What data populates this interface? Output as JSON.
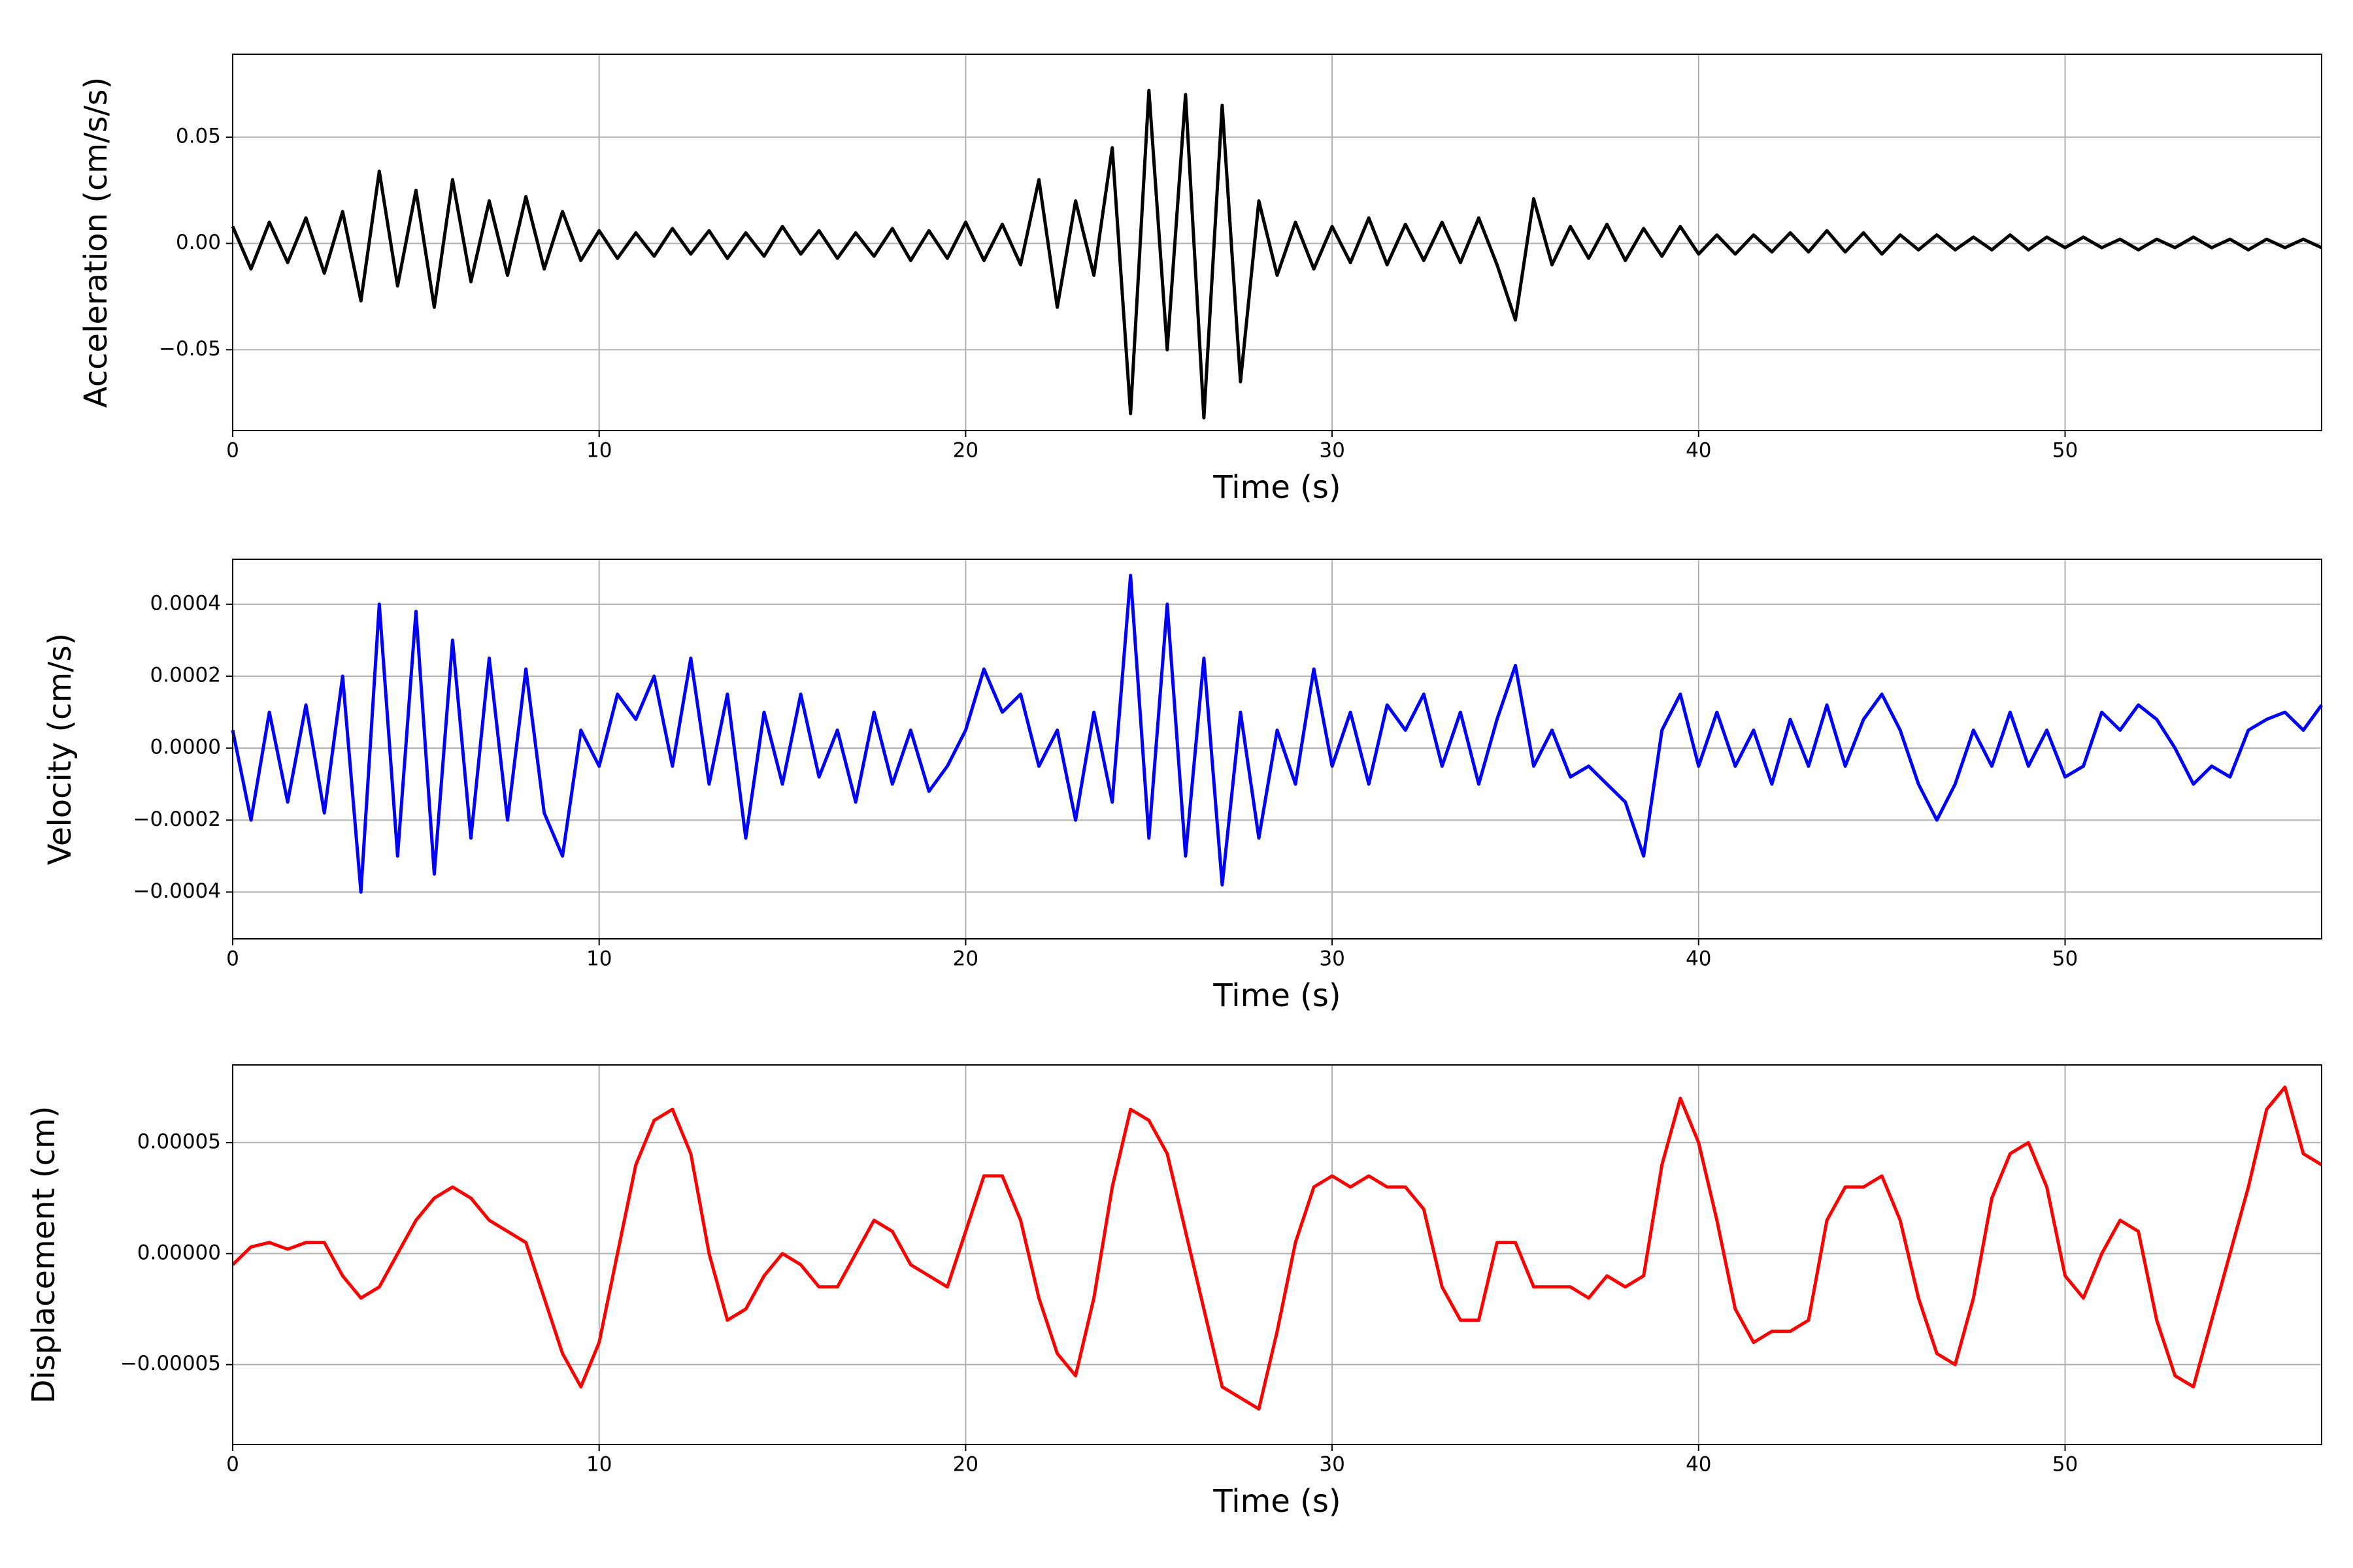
{
  "chart_data": [
    {
      "type": "line",
      "y_label": "Acceleration (cm/s/s)",
      "x_label": "Time (s)",
      "grid": true,
      "xlim": [
        0,
        57
      ],
      "xticks": [
        0,
        10,
        20,
        30,
        40,
        50
      ],
      "ylim": [
        -0.088,
        0.089
      ],
      "yticks": [
        {
          "value": -0.05,
          "label": "−0.05"
        },
        {
          "value": 0,
          "label": "0.00"
        },
        0.05
      ],
      "x": [
        0,
        0.5,
        1,
        1.5,
        2,
        2.5,
        3,
        3.5,
        4,
        4.5,
        5,
        5.5,
        6,
        6.5,
        7,
        7.5,
        8,
        8.5,
        9,
        9.5,
        10,
        10.5,
        11,
        11.5,
        12,
        12.5,
        13,
        13.5,
        14,
        14.5,
        15,
        15.5,
        16,
        16.5,
        17,
        17.5,
        18,
        18.5,
        19,
        19.5,
        20,
        20.5,
        21,
        21.5,
        22,
        22.5,
        23,
        23.5,
        24,
        24.5,
        25,
        25.5,
        26,
        26.5,
        27,
        27.5,
        28,
        28.5,
        29,
        29.5,
        30,
        30.5,
        31,
        31.5,
        32,
        32.5,
        33,
        33.5,
        34,
        34.5,
        35,
        35.5,
        36,
        36.5,
        37,
        37.5,
        38,
        38.5,
        39,
        39.5,
        40,
        40.5,
        41,
        41.5,
        42,
        42.5,
        43,
        43.5,
        44,
        44.5,
        45,
        45.5,
        46,
        46.5,
        47,
        47.5,
        48,
        48.5,
        49,
        49.5,
        50,
        50.5,
        51,
        51.5,
        52,
        52.5,
        53,
        53.5,
        54,
        54.5,
        55,
        55.5,
        56,
        56.5,
        57
      ],
      "series": [
        {
          "color": "#000000",
          "values": [
            0.008,
            -0.012,
            0.01,
            -0.009,
            0.012,
            -0.014,
            0.015,
            -0.027,
            0.034,
            -0.02,
            0.025,
            -0.03,
            0.03,
            -0.018,
            0.02,
            -0.015,
            0.022,
            -0.012,
            0.015,
            -0.008,
            0.006,
            -0.007,
            0.005,
            -0.006,
            0.007,
            -0.005,
            0.006,
            -0.007,
            0.005,
            -0.006,
            0.008,
            -0.005,
            0.006,
            -0.007,
            0.005,
            -0.006,
            0.007,
            -0.008,
            0.006,
            -0.007,
            0.01,
            -0.008,
            0.009,
            -0.01,
            0.03,
            -0.03,
            0.02,
            -0.015,
            0.045,
            -0.08,
            0.072,
            -0.05,
            0.07,
            -0.082,
            0.065,
            -0.065,
            0.02,
            -0.015,
            0.01,
            -0.012,
            0.008,
            -0.009,
            0.012,
            -0.01,
            0.009,
            -0.008,
            0.01,
            -0.009,
            0.012,
            -0.01,
            -0.036,
            0.021,
            -0.01,
            0.008,
            -0.007,
            0.009,
            -0.008,
            0.007,
            -0.006,
            0.008,
            -0.005,
            0.004,
            -0.005,
            0.004,
            -0.004,
            0.005,
            -0.004,
            0.006,
            -0.004,
            0.005,
            -0.005,
            0.004,
            -0.003,
            0.004,
            -0.003,
            0.003,
            -0.003,
            0.004,
            -0.003,
            0.003,
            -0.002,
            0.003,
            -0.002,
            0.002,
            -0.003,
            0.002,
            -0.002,
            0.003,
            -0.002,
            0.002,
            -0.003,
            0.002,
            -0.002,
            0.002,
            -0.002
          ]
        }
      ]
    },
    {
      "type": "line",
      "y_label": "Velocity (cm/s)",
      "x_label": "Time (s)",
      "grid": true,
      "xlim": [
        0,
        57
      ],
      "xticks": [
        0,
        10,
        20,
        30,
        40,
        50
      ],
      "ylim": [
        -0.00053,
        0.000525
      ],
      "yticks": [
        {
          "value": -0.0004,
          "label": "−0.0004"
        },
        {
          "value": -0.0002,
          "label": "−0.0002"
        },
        {
          "value": 0,
          "label": "0.0000"
        },
        0.0002,
        0.0004
      ],
      "x": [
        0,
        0.5,
        1,
        1.5,
        2,
        2.5,
        3,
        3.5,
        4,
        4.5,
        5,
        5.5,
        6,
        6.5,
        7,
        7.5,
        8,
        8.5,
        9,
        9.5,
        10,
        10.5,
        11,
        11.5,
        12,
        12.5,
        13,
        13.5,
        14,
        14.5,
        15,
        15.5,
        16,
        16.5,
        17,
        17.5,
        18,
        18.5,
        19,
        19.5,
        20,
        20.5,
        21,
        21.5,
        22,
        22.5,
        23,
        23.5,
        24,
        24.5,
        25,
        25.5,
        26,
        26.5,
        27,
        27.5,
        28,
        28.5,
        29,
        29.5,
        30,
        30.5,
        31,
        31.5,
        32,
        32.5,
        33,
        33.5,
        34,
        34.5,
        35,
        35.5,
        36,
        36.5,
        37,
        37.5,
        38,
        38.5,
        39,
        39.5,
        40,
        40.5,
        41,
        41.5,
        42,
        42.5,
        43,
        43.5,
        44,
        44.5,
        45,
        45.5,
        46,
        46.5,
        47,
        47.5,
        48,
        48.5,
        49,
        49.5,
        50,
        50.5,
        51,
        51.5,
        52,
        52.5,
        53,
        53.5,
        54,
        54.5,
        55,
        55.5,
        56,
        56.5,
        57
      ],
      "series": [
        {
          "color": "#0000ff",
          "values": [
            5e-05,
            -0.0002,
            0.0001,
            -0.00015,
            0.00012,
            -0.00018,
            0.0002,
            -0.0004,
            0.0004,
            -0.0003,
            0.00038,
            -0.00035,
            0.0003,
            -0.00025,
            0.00025,
            -0.0002,
            0.00022,
            -0.00018,
            -0.0003,
            5e-05,
            -5e-05,
            0.00015,
            8e-05,
            0.0002,
            -5e-05,
            0.00025,
            -0.0001,
            0.00015,
            -0.00025,
            0.0001,
            -0.0001,
            0.00015,
            -8e-05,
            5e-05,
            -0.00015,
            0.0001,
            -0.0001,
            5e-05,
            -0.00012,
            -5e-05,
            5e-05,
            0.00022,
            0.0001,
            0.00015,
            -5e-05,
            5e-05,
            -0.0002,
            0.0001,
            -0.00015,
            0.00048,
            -0.00025,
            0.0004,
            -0.0003,
            0.00025,
            -0.00038,
            0.0001,
            -0.00025,
            5e-05,
            -0.0001,
            0.00022,
            -5e-05,
            0.0001,
            -0.0001,
            0.00012,
            5e-05,
            0.00015,
            -5e-05,
            0.0001,
            -0.0001,
            8e-05,
            0.00023,
            -5e-05,
            5e-05,
            -8e-05,
            -5e-05,
            -0.0001,
            -0.00015,
            -0.0003,
            5e-05,
            0.00015,
            -5e-05,
            0.0001,
            -5e-05,
            5e-05,
            -0.0001,
            8e-05,
            -5e-05,
            0.00012,
            -5e-05,
            8e-05,
            0.00015,
            5e-05,
            -0.0001,
            -0.0002,
            -0.0001,
            5e-05,
            -5e-05,
            0.0001,
            -5e-05,
            5e-05,
            -8e-05,
            -5e-05,
            0.0001,
            5e-05,
            0.00012,
            8e-05,
            0,
            -0.0001,
            -5e-05,
            -8e-05,
            5e-05,
            8e-05,
            0.0001,
            5e-05,
            0.00012
          ]
        }
      ]
    },
    {
      "type": "line",
      "y_label": "Displacement (cm)",
      "x_label": "Time (s)",
      "grid": true,
      "xlim": [
        0,
        57
      ],
      "xticks": [
        0,
        10,
        20,
        30,
        40,
        50
      ],
      "ylim": [
        -8.6e-05,
        8.5e-05
      ],
      "yticks": [
        {
          "value": -5e-05,
          "label": "−0.00005"
        },
        {
          "value": 0,
          "label": "0.00000"
        },
        5e-05
      ],
      "x": [
        0,
        0.5,
        1,
        1.5,
        2,
        2.5,
        3,
        3.5,
        4,
        4.5,
        5,
        5.5,
        6,
        6.5,
        7,
        7.5,
        8,
        8.5,
        9,
        9.5,
        10,
        10.5,
        11,
        11.5,
        12,
        12.5,
        13,
        13.5,
        14,
        14.5,
        15,
        15.5,
        16,
        16.5,
        17,
        17.5,
        18,
        18.5,
        19,
        19.5,
        20,
        20.5,
        21,
        21.5,
        22,
        22.5,
        23,
        23.5,
        24,
        24.5,
        25,
        25.5,
        26,
        26.5,
        27,
        27.5,
        28,
        28.5,
        29,
        29.5,
        30,
        30.5,
        31,
        31.5,
        32,
        32.5,
        33,
        33.5,
        34,
        34.5,
        35,
        35.5,
        36,
        36.5,
        37,
        37.5,
        38,
        38.5,
        39,
        39.5,
        40,
        40.5,
        41,
        41.5,
        42,
        42.5,
        43,
        43.5,
        44,
        44.5,
        45,
        45.5,
        46,
        46.5,
        47,
        47.5,
        48,
        48.5,
        49,
        49.5,
        50,
        50.5,
        51,
        51.5,
        52,
        52.5,
        53,
        53.5,
        54,
        54.5,
        55,
        55.5,
        56,
        56.5,
        57
      ],
      "series": [
        {
          "color": "#ff0000",
          "values": [
            -5e-06,
            3e-06,
            5e-06,
            2e-06,
            5e-06,
            5e-06,
            -1e-05,
            -2e-05,
            -1.5e-05,
            0,
            1.5e-05,
            2.5e-05,
            3e-05,
            2.5e-05,
            1.5e-05,
            1e-05,
            5e-06,
            -2e-05,
            -4.5e-05,
            -6e-05,
            -4e-05,
            0,
            4e-05,
            6e-05,
            6.5e-05,
            4.5e-05,
            0,
            -3e-05,
            -2.5e-05,
            -1e-05,
            0,
            -5e-06,
            -1.5e-05,
            -1.5e-05,
            0,
            1.5e-05,
            1e-05,
            -5e-06,
            -1e-05,
            -1.5e-05,
            1e-05,
            3.5e-05,
            3.5e-05,
            1.5e-05,
            -2e-05,
            -4.5e-05,
            -5.5e-05,
            -2e-05,
            3e-05,
            6.5e-05,
            6e-05,
            4.5e-05,
            1e-05,
            -2.5e-05,
            -6e-05,
            -6.5e-05,
            -7e-05,
            -3.5e-05,
            5e-06,
            3e-05,
            3.5e-05,
            3e-05,
            3.5e-05,
            3e-05,
            3e-05,
            2e-05,
            -1.5e-05,
            -3e-05,
            -3e-05,
            5e-06,
            5e-06,
            -1.5e-05,
            -1.5e-05,
            -1.5e-05,
            -2e-05,
            -1e-05,
            -1.5e-05,
            -1e-05,
            4e-05,
            7e-05,
            5e-05,
            1.5e-05,
            -2.5e-05,
            -4e-05,
            -3.5e-05,
            -3.5e-05,
            -3e-05,
            1.5e-05,
            3e-05,
            3e-05,
            3.5e-05,
            1.5e-05,
            -2e-05,
            -4.5e-05,
            -5e-05,
            -2e-05,
            2.5e-05,
            4.5e-05,
            5e-05,
            3e-05,
            -1e-05,
            -2e-05,
            0,
            1.5e-05,
            1e-05,
            -3e-05,
            -5.5e-05,
            -6e-05,
            -3e-05,
            0,
            3e-05,
            6.5e-05,
            7.5e-05,
            4.5e-05,
            4e-05
          ]
        }
      ]
    }
  ]
}
